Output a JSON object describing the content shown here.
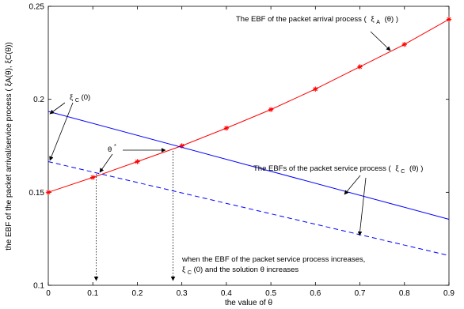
{
  "chart_data": {
    "type": "line",
    "xlabel": "the value of θ",
    "ylabel": "the EBF of the packet arrival/service process ( ξA(θ), ξC(θ))",
    "xlim": [
      0,
      0.9
    ],
    "ylim": [
      0.1,
      0.25
    ],
    "x_ticks": [
      0,
      0.1,
      0.2,
      0.3,
      0.4,
      0.5,
      0.6,
      0.7,
      0.8,
      0.9
    ],
    "x_tick_labels": [
      "0",
      "0.1",
      "0.2",
      "0.3",
      "0.4",
      "0.5",
      "0.6",
      "0.7",
      "0.8",
      "0.9"
    ],
    "y_ticks": [
      0.1,
      0.15,
      0.2,
      0.25
    ],
    "y_tick_labels": [
      "0.1",
      "0.15",
      "0.2",
      "0.25"
    ],
    "grid": false,
    "series": [
      {
        "key": "arrival",
        "color": "#ff0000",
        "style": "solid",
        "marker": "asterisk",
        "x": [
          0,
          0.1,
          0.2,
          0.3,
          0.4,
          0.5,
          0.6,
          0.7,
          0.8,
          0.9
        ],
        "values": [
          0.15,
          0.158,
          0.1665,
          0.175,
          0.1845,
          0.1945,
          0.2055,
          0.2175,
          0.2295,
          0.243
        ]
      },
      {
        "key": "service_high",
        "color": "#0000ff",
        "style": "solid",
        "x": [
          0,
          0.9
        ],
        "values": [
          0.1935,
          0.1355
        ]
      },
      {
        "key": "service_low",
        "color": "#0000ff",
        "style": "dashed",
        "x": [
          0,
          0.9
        ],
        "values": [
          0.1665,
          0.116
        ]
      }
    ],
    "annotations": {
      "arrival_label": "The EBF of the packet arrival process (",
      "arrival_sym": "ξ",
      "arrival_sub": "A",
      "arrival_tail": "(θ) )",
      "service_label": "The EBFs of the packet service process (",
      "service_sym": "ξ",
      "service_sub": "C",
      "service_tail": "(θ) )",
      "xi_c0_sym": "ξ",
      "xi_c0_sub": "C",
      "xi_c0_tail": "(0)",
      "theta_star": "θ",
      "theta_star_sup": "*",
      "increase_line1": "when the EBF of the packet service process increases,",
      "increase_sym": "ξ",
      "increase_sub": "C",
      "increase_tail": "(0) and the solution θ  increases"
    }
  }
}
